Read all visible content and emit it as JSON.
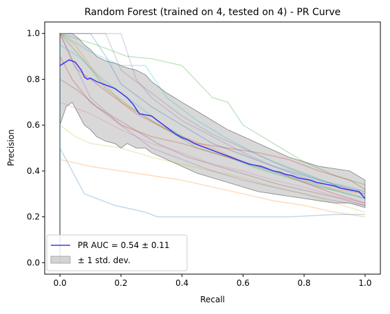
{
  "chart_data": {
    "type": "line",
    "title": "Random Forest (trained on 4, tested on 4) -  PR Curve",
    "xlabel": "Recall",
    "ylabel": "Precision",
    "xlim": [
      -0.05,
      1.05
    ],
    "ylim": [
      -0.05,
      1.05
    ],
    "xticks": [
      0.0,
      0.2,
      0.4,
      0.6,
      0.8,
      1.0
    ],
    "yticks": [
      0.0,
      0.2,
      0.4,
      0.6,
      0.8,
      1.0
    ],
    "xtick_labels": [
      "0.0",
      "0.2",
      "0.4",
      "0.6",
      "0.8",
      "1.0"
    ],
    "ytick_labels": [
      "0.0",
      "0.2",
      "0.4",
      "0.6",
      "0.8",
      "1.0"
    ],
    "grid": false,
    "legend_position": "lower-left",
    "legend": [
      {
        "label": "PR AUC = 0.54 ± 0.11",
        "kind": "line",
        "color": "#3a3af0"
      },
      {
        "label": "± 1 std. dev.",
        "kind": "patch",
        "color": "#a9a9a9"
      }
    ],
    "mean_curve": {
      "color": "#3a3af0",
      "x": [
        0.0,
        0.03,
        0.05,
        0.07,
        0.08,
        0.09,
        0.1,
        0.12,
        0.14,
        0.16,
        0.18,
        0.2,
        0.22,
        0.24,
        0.26,
        0.28,
        0.3,
        0.32,
        0.34,
        0.36,
        0.38,
        0.4,
        0.42,
        0.44,
        0.46,
        0.48,
        0.5,
        0.52,
        0.54,
        0.56,
        0.58,
        0.6,
        0.62,
        0.64,
        0.66,
        0.68,
        0.7,
        0.72,
        0.74,
        0.76,
        0.78,
        0.8,
        0.82,
        0.84,
        0.86,
        0.88,
        0.9,
        0.92,
        0.94,
        0.96,
        0.98,
        1.0
      ],
      "y": [
        0.86,
        0.885,
        0.875,
        0.84,
        0.81,
        0.8,
        0.805,
        0.79,
        0.78,
        0.77,
        0.76,
        0.74,
        0.72,
        0.69,
        0.65,
        0.645,
        0.64,
        0.62,
        0.6,
        0.58,
        0.56,
        0.545,
        0.535,
        0.52,
        0.51,
        0.5,
        0.49,
        0.48,
        0.47,
        0.46,
        0.45,
        0.44,
        0.43,
        0.425,
        0.42,
        0.41,
        0.4,
        0.395,
        0.385,
        0.38,
        0.37,
        0.365,
        0.36,
        0.35,
        0.345,
        0.34,
        0.335,
        0.325,
        0.32,
        0.315,
        0.31,
        0.28
      ]
    },
    "std_band": {
      "color": "#a9a9a9",
      "x": [
        0.0,
        0.02,
        0.04,
        0.06,
        0.08,
        0.1,
        0.12,
        0.15,
        0.18,
        0.2,
        0.22,
        0.25,
        0.28,
        0.3,
        0.35,
        0.4,
        0.45,
        0.5,
        0.55,
        0.6,
        0.65,
        0.7,
        0.75,
        0.8,
        0.85,
        0.9,
        0.95,
        1.0
      ],
      "upper": [
        1.0,
        1.0,
        1.0,
        0.98,
        0.95,
        0.93,
        0.9,
        0.88,
        0.87,
        0.86,
        0.85,
        0.84,
        0.82,
        0.79,
        0.74,
        0.7,
        0.66,
        0.62,
        0.58,
        0.55,
        0.52,
        0.49,
        0.46,
        0.44,
        0.42,
        0.41,
        0.4,
        0.36
      ],
      "lower": [
        0.6,
        0.68,
        0.7,
        0.65,
        0.6,
        0.58,
        0.55,
        0.53,
        0.52,
        0.5,
        0.52,
        0.5,
        0.5,
        0.48,
        0.45,
        0.42,
        0.39,
        0.37,
        0.35,
        0.33,
        0.31,
        0.3,
        0.29,
        0.28,
        0.27,
        0.26,
        0.26,
        0.24
      ]
    },
    "series": [
      {
        "color": "#1f77b4",
        "x": [
          0.0,
          0.0,
          0.1,
          0.15,
          0.2,
          0.3,
          0.4,
          0.5,
          0.6,
          0.7,
          0.8,
          0.9,
          1.0
        ],
        "y": [
          0.0,
          1.0,
          1.0,
          0.9,
          0.78,
          0.68,
          0.6,
          0.52,
          0.47,
          0.42,
          0.38,
          0.34,
          0.3
        ]
      },
      {
        "color": "#ff7f0e",
        "x": [
          0.0,
          0.0,
          0.05,
          0.12,
          0.2,
          0.3,
          0.4,
          0.5,
          0.6,
          0.7,
          0.8,
          0.9,
          1.0
        ],
        "y": [
          0.0,
          1.0,
          0.95,
          0.82,
          0.7,
          0.62,
          0.55,
          0.5,
          0.44,
          0.4,
          0.36,
          0.32,
          0.3
        ]
      },
      {
        "color": "#2ca02c",
        "x": [
          0.0,
          0.0,
          0.08,
          0.15,
          0.25,
          0.35,
          0.45,
          0.55,
          0.65,
          0.75,
          0.85,
          0.95,
          1.0
        ],
        "y": [
          0.0,
          1.0,
          0.88,
          0.76,
          0.66,
          0.58,
          0.5,
          0.46,
          0.41,
          0.37,
          0.33,
          0.3,
          0.28
        ]
      },
      {
        "color": "#d62728",
        "x": [
          0.0,
          0.0,
          0.04,
          0.1,
          0.2,
          0.3,
          0.4,
          0.5,
          0.6,
          0.7,
          0.8,
          0.9,
          1.0
        ],
        "y": [
          0.0,
          0.9,
          0.8,
          0.7,
          0.6,
          0.55,
          0.52,
          0.48,
          0.44,
          0.4,
          0.35,
          0.3,
          0.26
        ]
      },
      {
        "color": "#9467bd",
        "x": [
          0.0,
          0.0,
          0.2,
          0.25,
          0.3,
          0.4,
          0.5,
          0.6,
          0.7,
          0.8,
          0.9,
          1.0
        ],
        "y": [
          0.0,
          1.0,
          1.0,
          0.8,
          0.72,
          0.62,
          0.55,
          0.48,
          0.42,
          0.37,
          0.33,
          0.3
        ]
      },
      {
        "color": "#8c564b",
        "x": [
          0.0,
          0.0,
          0.06,
          0.12,
          0.22,
          0.32,
          0.42,
          0.52,
          0.62,
          0.72,
          0.82,
          0.92,
          1.0
        ],
        "y": [
          0.0,
          0.8,
          0.75,
          0.68,
          0.6,
          0.52,
          0.46,
          0.42,
          0.38,
          0.34,
          0.31,
          0.28,
          0.25
        ]
      },
      {
        "color": "#e377c2",
        "x": [
          0.0,
          0.0,
          0.1,
          0.2,
          0.3,
          0.4,
          0.5,
          0.6,
          0.7,
          0.8,
          0.9,
          1.0
        ],
        "y": [
          0.0,
          0.7,
          0.65,
          0.58,
          0.52,
          0.48,
          0.43,
          0.4,
          0.36,
          0.33,
          0.29,
          0.26
        ]
      },
      {
        "color": "#7f7f7f",
        "x": [
          0.0,
          0.0,
          0.15,
          0.2,
          0.3,
          0.4,
          0.5,
          0.6,
          0.7,
          0.8,
          0.9,
          1.0
        ],
        "y": [
          0.0,
          1.0,
          1.0,
          0.84,
          0.74,
          0.64,
          0.56,
          0.5,
          0.44,
          0.39,
          0.34,
          0.31
        ]
      },
      {
        "color": "#bcbd22",
        "x": [
          0.0,
          0.0,
          0.05,
          0.1,
          0.2,
          0.3,
          0.4,
          0.5,
          0.6,
          0.7,
          0.8,
          0.9,
          1.0
        ],
        "y": [
          0.0,
          0.6,
          0.55,
          0.52,
          0.5,
          0.46,
          0.43,
          0.4,
          0.37,
          0.33,
          0.3,
          0.26,
          0.22
        ]
      },
      {
        "color": "#17becf",
        "x": [
          0.0,
          0.0,
          0.1,
          0.2,
          0.28,
          0.35,
          0.45,
          0.55,
          0.65,
          0.75,
          0.85,
          0.95,
          1.0
        ],
        "y": [
          0.0,
          1.0,
          0.92,
          0.86,
          0.86,
          0.72,
          0.62,
          0.54,
          0.47,
          0.41,
          0.36,
          0.33,
          0.31
        ]
      },
      {
        "color": "#1f77b4",
        "x": [
          0.0,
          0.0,
          0.08,
          0.18,
          0.28,
          0.32,
          0.45,
          0.6,
          0.75,
          0.9,
          1.0
        ],
        "y": [
          0.0,
          0.5,
          0.3,
          0.25,
          0.22,
          0.2,
          0.2,
          0.2,
          0.2,
          0.21,
          0.21
        ]
      },
      {
        "color": "#2ca02c",
        "x": [
          0.0,
          0.0,
          0.12,
          0.22,
          0.3,
          0.4,
          0.5,
          0.55,
          0.6,
          0.7,
          0.8,
          0.9,
          1.0
        ],
        "y": [
          0.0,
          1.0,
          0.95,
          0.9,
          0.89,
          0.86,
          0.72,
          0.7,
          0.6,
          0.52,
          0.44,
          0.38,
          0.34
        ]
      },
      {
        "color": "#ff7f0e",
        "x": [
          0.0,
          0.0,
          0.1,
          0.2,
          0.3,
          0.4,
          0.5,
          0.6,
          0.7,
          0.8,
          0.9,
          1.0
        ],
        "y": [
          0.0,
          0.45,
          0.42,
          0.4,
          0.38,
          0.36,
          0.33,
          0.3,
          0.27,
          0.25,
          0.22,
          0.2
        ]
      },
      {
        "color": "#d62728",
        "x": [
          0.0,
          0.0,
          0.05,
          0.15,
          0.25,
          0.35,
          0.45,
          0.55,
          0.65,
          0.75,
          0.85,
          0.95,
          1.0
        ],
        "y": [
          0.0,
          1.0,
          0.85,
          0.75,
          0.65,
          0.58,
          0.52,
          0.5,
          0.48,
          0.45,
          0.4,
          0.36,
          0.32
        ]
      },
      {
        "color": "#9467bd",
        "x": [
          0.0,
          0.0,
          0.1,
          0.2,
          0.3,
          0.4,
          0.5,
          0.6,
          0.7,
          0.8,
          0.9,
          1.0
        ],
        "y": [
          0.0,
          1.0,
          0.72,
          0.6,
          0.5,
          0.45,
          0.4,
          0.36,
          0.33,
          0.3,
          0.27,
          0.25
        ]
      },
      {
        "color": "#17becf",
        "x": [
          0.0,
          0.0,
          0.06,
          0.14,
          0.24,
          0.34,
          0.44,
          0.54,
          0.64,
          0.74,
          0.84,
          0.94,
          1.0
        ],
        "y": [
          0.0,
          0.95,
          0.9,
          0.8,
          0.7,
          0.6,
          0.52,
          0.47,
          0.42,
          0.38,
          0.34,
          0.3,
          0.28
        ]
      }
    ]
  }
}
